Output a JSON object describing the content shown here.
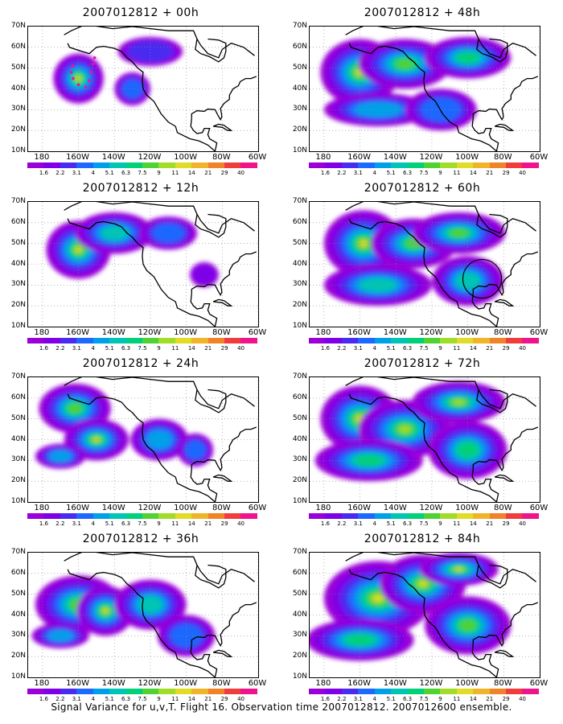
{
  "panels": [
    {
      "title": "2007012812 + 00h",
      "stage": 0,
      "track": true,
      "circle": false
    },
    {
      "title": "2007012812 + 48h",
      "stage": 4,
      "track": false,
      "circle": false
    },
    {
      "title": "2007012812 + 12h",
      "stage": 1,
      "track": false,
      "circle": false
    },
    {
      "title": "2007012812 + 60h",
      "stage": 5,
      "track": false,
      "circle": true
    },
    {
      "title": "2007012812 + 24h",
      "stage": 2,
      "track": false,
      "circle": false
    },
    {
      "title": "2007012812 + 72h",
      "stage": 6,
      "track": false,
      "circle": false
    },
    {
      "title": "2007012812 + 36h",
      "stage": 3,
      "track": false,
      "circle": false
    },
    {
      "title": "2007012812 + 84h",
      "stage": 7,
      "track": false,
      "circle": false
    }
  ],
  "lat_labels": [
    "70N",
    "60N",
    "50N",
    "40N",
    "30N",
    "20N",
    "10N"
  ],
  "lon_labels": [
    "180",
    "160W",
    "140W",
    "120W",
    "100W",
    "80W",
    "60W"
  ],
  "colorbar": {
    "labels": [
      "1.6",
      "2.2",
      "3.1",
      "4",
      "5.1",
      "6.3",
      "7.5",
      "9",
      "11",
      "14",
      "21",
      "29",
      "40"
    ],
    "colors": [
      "#9a00d8",
      "#7e00e6",
      "#4a2cf0",
      "#1e68ff",
      "#00a0e8",
      "#00c4b4",
      "#00d07a",
      "#50d232",
      "#a0dc28",
      "#e0dc28",
      "#f0b428",
      "#f08228",
      "#f03c3c",
      "#f0148c"
    ]
  },
  "caption": "Signal Variance for u,v,T. Flight 16. Observation time 2007012812. 2007012600 ensemble."
}
